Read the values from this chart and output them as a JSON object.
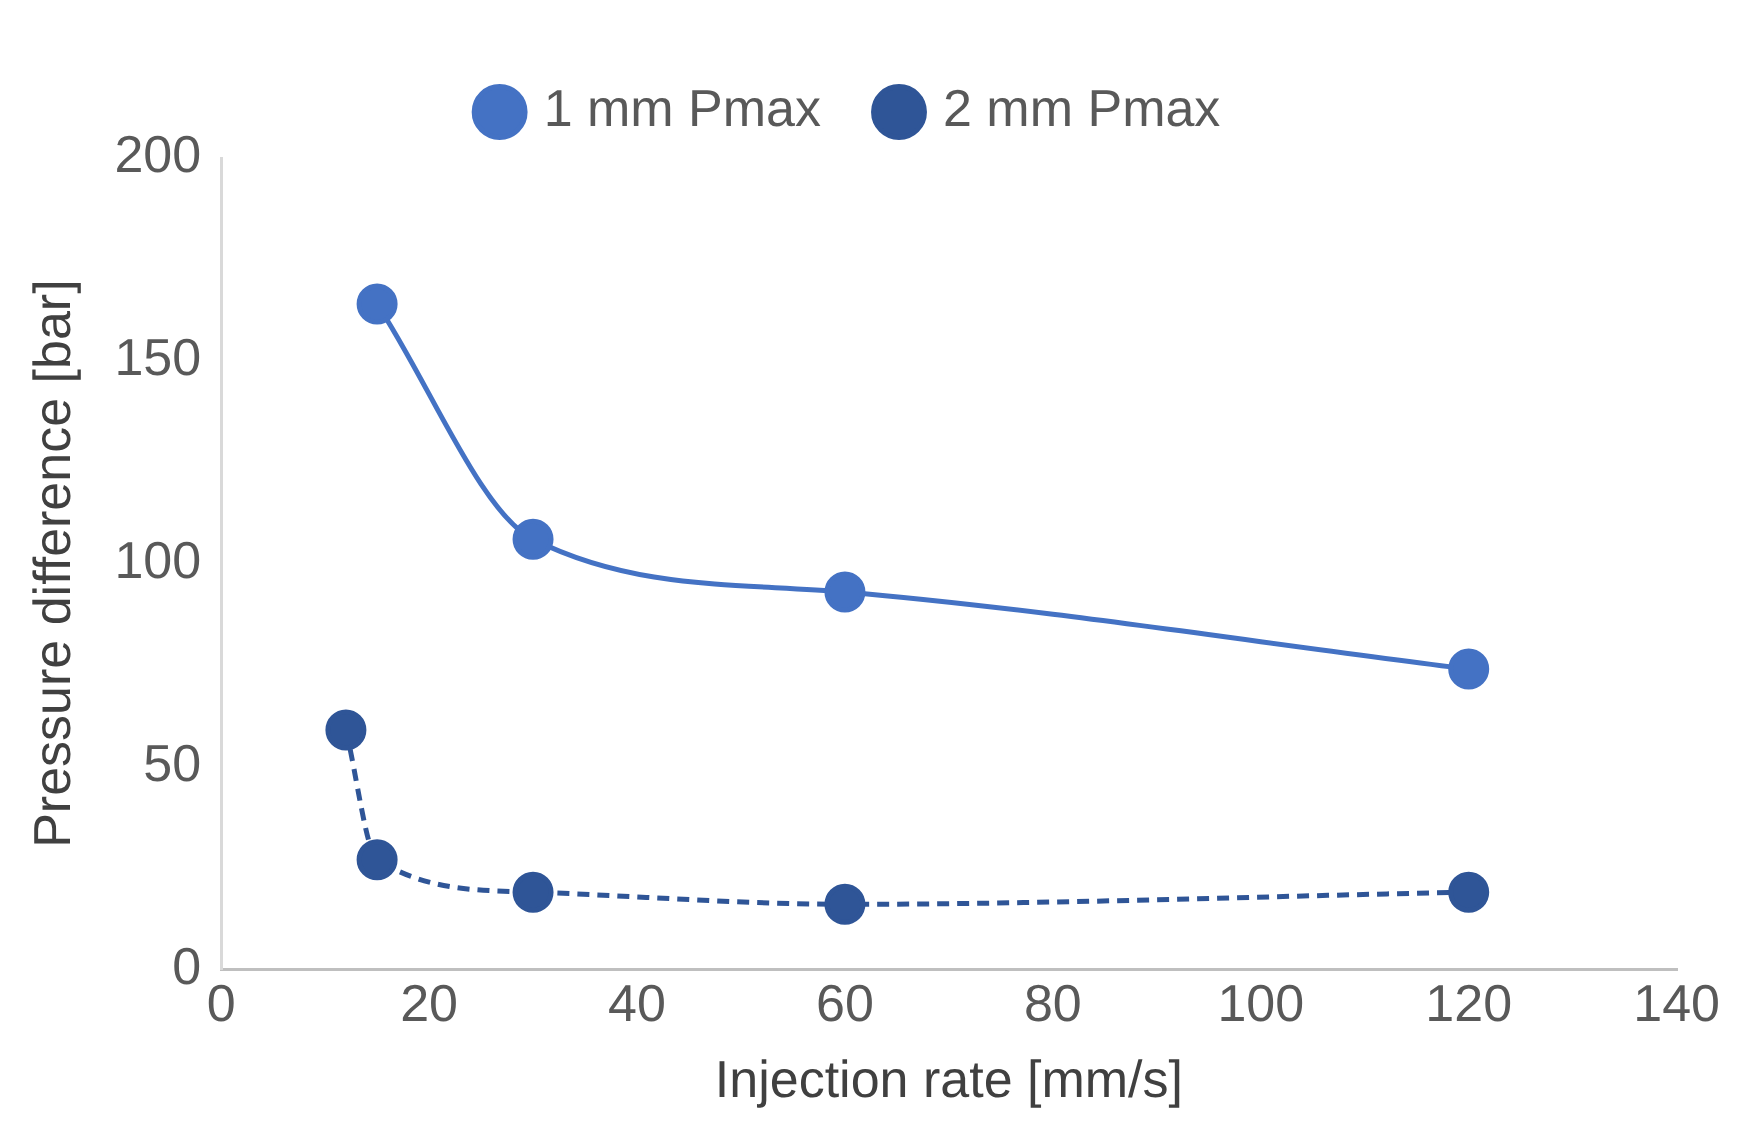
{
  "chart_data": {
    "type": "line",
    "xlabel": "Injection rate [mm/s]",
    "ylabel": "Pressure difference [bar]",
    "xlim": [
      0,
      140
    ],
    "xticks": [
      0,
      20,
      40,
      60,
      80,
      100,
      120,
      140
    ],
    "ylim": [
      0,
      200
    ],
    "yticks": [
      0,
      50,
      100,
      150,
      200
    ],
    "grid": false,
    "legend": "top",
    "marker": "circle",
    "series": [
      {
        "name": "1 mm Pmax",
        "color": "#4472c4",
        "line_style": "solid",
        "x": [
          15,
          30,
          60,
          120
        ],
        "values": [
          164,
          106,
          93,
          74
        ]
      },
      {
        "name": "2 mm Pmax",
        "color": "#2f5597",
        "line_style": "dashed",
        "x": [
          12,
          15,
          30,
          60,
          120
        ],
        "values": [
          59,
          27,
          19,
          16,
          19
        ]
      }
    ]
  }
}
